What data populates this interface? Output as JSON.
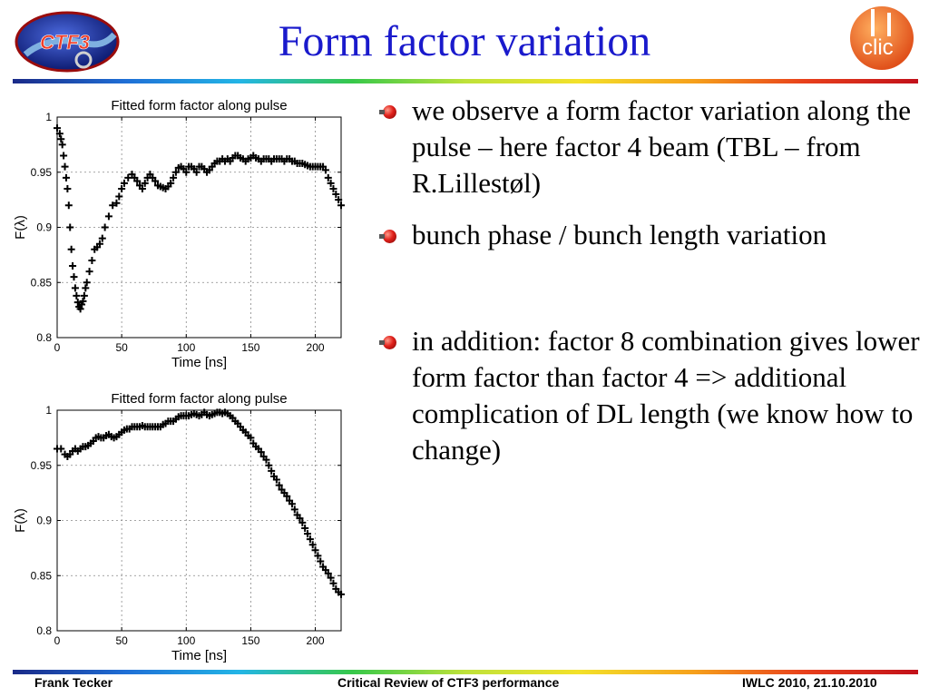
{
  "header": {
    "title": "Form factor variation",
    "logo_left_text": "CTF3",
    "logo_right_text": "clic"
  },
  "bullets": [
    "we observe a form factor variation along the pulse – here factor 4 beam (TBL – from R.Lillestøl)",
    "bunch phase / bunch length variation",
    "in addition: factor 8 combination gives lower form factor than factor 4 => additional complication of DL length (we know how to change)"
  ],
  "footer": {
    "left": "Frank Tecker",
    "center": "Critical Review of CTF3 performance",
    "right": "IWLC 2010, 21.10.2010"
  },
  "colors": {
    "title": "#1a1acc",
    "bullet_red": "#e0201a"
  },
  "chart_data": [
    {
      "type": "scatter",
      "title": "Fitted form factor along pulse",
      "xlabel": "Time [ns]",
      "ylabel": "F(λ)",
      "xlim": [
        0,
        220
      ],
      "ylim": [
        0.8,
        1
      ],
      "xticks": [
        0,
        50,
        100,
        150,
        200
      ],
      "yticks": [
        0.8,
        0.85,
        0.9,
        0.95,
        1
      ],
      "ytick_labels": [
        "0.8",
        "0.85",
        "0.9",
        "0.95",
        "1"
      ],
      "grid": true,
      "marker": "plus",
      "x": [
        0,
        2,
        3,
        4,
        5,
        6,
        7,
        8,
        9,
        10,
        11,
        12,
        13,
        14,
        15,
        16,
        17,
        18,
        19,
        20,
        21,
        22,
        23,
        25,
        27,
        29,
        31,
        33,
        35,
        37,
        40,
        43,
        46,
        48,
        50,
        52,
        55,
        58,
        60,
        62,
        64,
        66,
        68,
        70,
        72,
        74,
        76,
        78,
        80,
        82,
        84,
        86,
        88,
        90,
        92,
        94,
        96,
        98,
        100,
        102,
        104,
        106,
        108,
        110,
        112,
        114,
        116,
        118,
        120,
        122,
        124,
        126,
        128,
        130,
        132,
        134,
        136,
        138,
        140,
        142,
        144,
        146,
        148,
        150,
        152,
        154,
        156,
        158,
        160,
        162,
        164,
        166,
        168,
        170,
        172,
        174,
        176,
        178,
        180,
        182,
        184,
        186,
        188,
        190,
        192,
        194,
        196,
        198,
        200,
        202,
        204,
        206,
        208,
        210,
        212,
        214,
        216,
        218,
        220
      ],
      "y": [
        0.99,
        0.985,
        0.98,
        0.975,
        0.965,
        0.955,
        0.945,
        0.935,
        0.92,
        0.9,
        0.88,
        0.865,
        0.855,
        0.845,
        0.838,
        0.832,
        0.828,
        0.826,
        0.83,
        0.833,
        0.838,
        0.845,
        0.85,
        0.86,
        0.87,
        0.88,
        0.882,
        0.885,
        0.89,
        0.9,
        0.91,
        0.92,
        0.922,
        0.928,
        0.935,
        0.94,
        0.945,
        0.948,
        0.945,
        0.942,
        0.938,
        0.935,
        0.94,
        0.945,
        0.948,
        0.945,
        0.942,
        0.938,
        0.937,
        0.936,
        0.935,
        0.937,
        0.94,
        0.945,
        0.95,
        0.954,
        0.955,
        0.953,
        0.95,
        0.955,
        0.955,
        0.953,
        0.95,
        0.955,
        0.955,
        0.953,
        0.95,
        0.952,
        0.955,
        0.958,
        0.96,
        0.96,
        0.962,
        0.96,
        0.962,
        0.96,
        0.963,
        0.965,
        0.965,
        0.963,
        0.962,
        0.96,
        0.962,
        0.963,
        0.965,
        0.963,
        0.962,
        0.96,
        0.962,
        0.962,
        0.962,
        0.96,
        0.962,
        0.962,
        0.962,
        0.962,
        0.96,
        0.962,
        0.962,
        0.96,
        0.96,
        0.958,
        0.958,
        0.958,
        0.957,
        0.956,
        0.955,
        0.955,
        0.955,
        0.955,
        0.955,
        0.955,
        0.952,
        0.945,
        0.94,
        0.935,
        0.93,
        0.925,
        0.92
      ]
    },
    {
      "type": "scatter",
      "title": "Fitted form factor along pulse",
      "xlabel": "Time [ns]",
      "ylabel": "F(λ)",
      "xlim": [
        0,
        220
      ],
      "ylim": [
        0.8,
        1
      ],
      "xticks": [
        0,
        50,
        100,
        150,
        200
      ],
      "yticks": [
        0.8,
        0.85,
        0.9,
        0.95,
        1
      ],
      "ytick_labels": [
        "0.8",
        "0.85",
        "0.9",
        "0.95",
        "1"
      ],
      "grid": true,
      "marker": "plus",
      "x": [
        0,
        3,
        6,
        8,
        10,
        12,
        14,
        16,
        18,
        20,
        22,
        24,
        26,
        28,
        30,
        32,
        34,
        36,
        38,
        40,
        42,
        44,
        46,
        48,
        50,
        52,
        54,
        56,
        58,
        60,
        62,
        64,
        66,
        68,
        70,
        72,
        74,
        76,
        78,
        80,
        82,
        84,
        86,
        88,
        90,
        92,
        94,
        96,
        98,
        100,
        102,
        104,
        106,
        108,
        110,
        112,
        114,
        116,
        118,
        120,
        122,
        124,
        126,
        128,
        130,
        132,
        134,
        136,
        138,
        140,
        142,
        144,
        146,
        148,
        150,
        152,
        154,
        156,
        158,
        160,
        162,
        164,
        166,
        168,
        170,
        172,
        174,
        176,
        178,
        180,
        182,
        184,
        186,
        188,
        190,
        192,
        194,
        196,
        198,
        200,
        202,
        204,
        206,
        208,
        210,
        212,
        214,
        216,
        218,
        220
      ],
      "y": [
        0.965,
        0.965,
        0.96,
        0.958,
        0.96,
        0.963,
        0.965,
        0.963,
        0.965,
        0.967,
        0.967,
        0.968,
        0.97,
        0.972,
        0.975,
        0.976,
        0.975,
        0.975,
        0.977,
        0.978,
        0.976,
        0.975,
        0.976,
        0.978,
        0.98,
        0.982,
        0.983,
        0.983,
        0.985,
        0.985,
        0.985,
        0.985,
        0.986,
        0.985,
        0.985,
        0.985,
        0.985,
        0.985,
        0.985,
        0.985,
        0.987,
        0.988,
        0.99,
        0.99,
        0.99,
        0.992,
        0.994,
        0.995,
        0.995,
        0.995,
        0.995,
        0.996,
        0.997,
        0.996,
        0.995,
        0.996,
        0.998,
        0.996,
        0.995,
        0.996,
        0.997,
        0.998,
        0.998,
        0.997,
        0.998,
        0.997,
        0.995,
        0.993,
        0.99,
        0.988,
        0.985,
        0.982,
        0.98,
        0.977,
        0.975,
        0.97,
        0.967,
        0.965,
        0.962,
        0.958,
        0.955,
        0.95,
        0.945,
        0.94,
        0.937,
        0.932,
        0.928,
        0.925,
        0.922,
        0.918,
        0.915,
        0.91,
        0.905,
        0.902,
        0.898,
        0.893,
        0.888,
        0.883,
        0.878,
        0.873,
        0.868,
        0.863,
        0.858,
        0.855,
        0.852,
        0.848,
        0.843,
        0.838,
        0.835,
        0.833
      ]
    }
  ]
}
